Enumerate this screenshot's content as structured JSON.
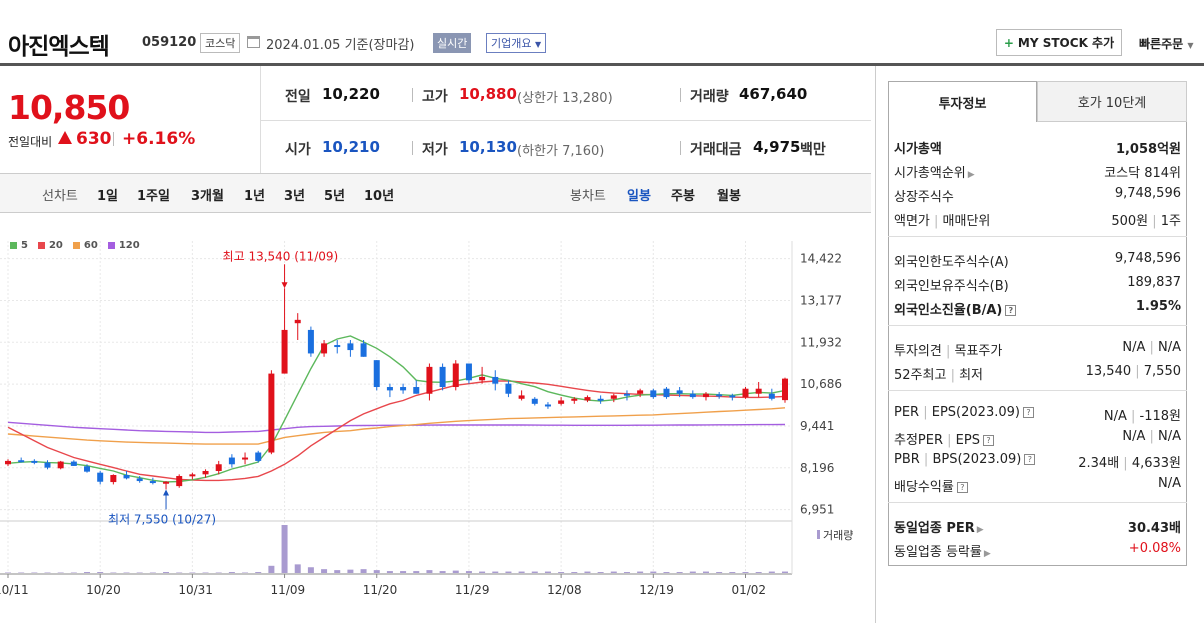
{
  "header": {
    "name": "아진엑스텍",
    "code": "059120",
    "market": "코스닥",
    "date": "2024.01.05  기준(장마감)",
    "realtime": "실시간",
    "overview": "기업개요",
    "mystock": "MY STOCK 추가",
    "mystock_plus": "+",
    "quickorder": "빠른주문"
  },
  "price": {
    "current": "10,850",
    "change_label": "전일대비",
    "change": "630",
    "change_pct": "+6.16%"
  },
  "quotes": {
    "prev_close_label": "전일",
    "prev_close": "10,220",
    "high_label": "고가",
    "high": "10,880",
    "upper_limit": "(상한가 13,280)",
    "volume_label": "거래량",
    "volume": "467,640",
    "open_label": "시가",
    "open": "10,210",
    "low_label": "저가",
    "low": "10,130",
    "lower_limit": "(하한가 7,160)",
    "amount_label": "거래대금",
    "amount": "4,975",
    "amount_unit": "백만"
  },
  "period_bar": {
    "line_label": "선차트",
    "line_items": [
      "1일",
      "1주일",
      "3개월",
      "1년",
      "3년",
      "5년",
      "10년"
    ],
    "candle_label": "봉차트",
    "candle_items": [
      "일봉",
      "주봉",
      "월봉"
    ],
    "active_candle": "일봉"
  },
  "chart_data": {
    "type": "candlestick",
    "legend": [
      {
        "name": "5",
        "color": "#5cb85c"
      },
      {
        "name": "20",
        "color": "#e8474c"
      },
      {
        "name": "60",
        "color": "#f0a04b"
      },
      {
        "name": "120",
        "color": "#a45ee0"
      }
    ],
    "y_ticks": [
      "14,422",
      "13,177",
      "11,932",
      "10,686",
      "9,441",
      "8,196",
      "6,951"
    ],
    "y_tick_values": [
      14422,
      13177,
      11932,
      10686,
      9441,
      8196,
      6951
    ],
    "ylim": [
      6700,
      14650
    ],
    "x_ticks": [
      {
        "label": "10/11",
        "index": 0
      },
      {
        "label": "10/20",
        "index": 7
      },
      {
        "label": "10/31",
        "index": 14
      },
      {
        "label": "11/09",
        "index": 21
      },
      {
        "label": "11/20",
        "index": 28
      },
      {
        "label": "11/29",
        "index": 35
      },
      {
        "label": "12/08",
        "index": 42
      },
      {
        "label": "12/19",
        "index": 49
      },
      {
        "label": "01/02",
        "index": 56
      }
    ],
    "high_annotation": "최고 13,540 (11/09)",
    "low_annotation": "최저 7,550 (10/27)",
    "high_index": 21,
    "high_value": 13540,
    "low_index": 12,
    "low_value": 7550,
    "volume_label": "거래량",
    "candles": [
      [
        8300,
        8450,
        8250,
        8400,
        "up"
      ],
      [
        8420,
        8500,
        8350,
        8380,
        "down"
      ],
      [
        8400,
        8450,
        8300,
        8350,
        "down"
      ],
      [
        8350,
        8420,
        8150,
        8200,
        "down"
      ],
      [
        8180,
        8400,
        8150,
        8380,
        "up"
      ],
      [
        8380,
        8420,
        8250,
        8250,
        "down"
      ],
      [
        8240,
        8300,
        8050,
        8080,
        "down"
      ],
      [
        8050,
        8100,
        7700,
        7780,
        "down"
      ],
      [
        7770,
        8000,
        7700,
        7980,
        "up"
      ],
      [
        7980,
        8100,
        7850,
        7880,
        "down"
      ],
      [
        7880,
        7950,
        7750,
        7800,
        "down"
      ],
      [
        7800,
        7900,
        7700,
        7750,
        "down"
      ],
      [
        7750,
        7800,
        7550,
        7780,
        "up"
      ],
      [
        7650,
        8000,
        7600,
        7950,
        "up"
      ],
      [
        7950,
        8050,
        7850,
        8000,
        "up"
      ],
      [
        8000,
        8150,
        7900,
        8100,
        "up"
      ],
      [
        8100,
        8400,
        8000,
        8300,
        "up"
      ],
      [
        8300,
        8600,
        8200,
        8500,
        "down"
      ],
      [
        8450,
        8650,
        8300,
        8500,
        "up"
      ],
      [
        8400,
        8700,
        8350,
        8650,
        "down"
      ],
      [
        8650,
        11100,
        8600,
        11000,
        "up"
      ],
      [
        11000,
        13540,
        11000,
        12300,
        "up"
      ],
      [
        12600,
        12800,
        12000,
        12500,
        "up"
      ],
      [
        12300,
        12400,
        11500,
        11600,
        "down"
      ],
      [
        11600,
        12000,
        11500,
        11900,
        "up"
      ],
      [
        11850,
        12000,
        11600,
        11800,
        "down"
      ],
      [
        11700,
        12000,
        11500,
        11900,
        "down"
      ],
      [
        11900,
        12000,
        11500,
        11500,
        "down"
      ],
      [
        11400,
        11400,
        10500,
        10600,
        "down"
      ],
      [
        10600,
        10700,
        10300,
        10500,
        "down"
      ],
      [
        10500,
        10700,
        10400,
        10600,
        "down"
      ],
      [
        10600,
        10800,
        10400,
        10400,
        "down"
      ],
      [
        10400,
        11300,
        10200,
        11200,
        "up"
      ],
      [
        11200,
        11300,
        10500,
        10600,
        "down"
      ],
      [
        10600,
        11400,
        10500,
        11300,
        "up"
      ],
      [
        11300,
        11300,
        10700,
        10800,
        "down"
      ],
      [
        10800,
        11200,
        10700,
        10900,
        "up"
      ],
      [
        10900,
        11100,
        10500,
        10700,
        "down"
      ],
      [
        10700,
        10800,
        10300,
        10400,
        "down"
      ],
      [
        10350,
        10500,
        10200,
        10250,
        "up"
      ],
      [
        10250,
        10300,
        10050,
        10100,
        "down"
      ],
      [
        10080,
        10150,
        9950,
        10050,
        "down"
      ],
      [
        10100,
        10300,
        10050,
        10200,
        "up"
      ],
      [
        10200,
        10300,
        10100,
        10250,
        "up"
      ],
      [
        10300,
        10350,
        10150,
        10200,
        "up"
      ],
      [
        10200,
        10350,
        10100,
        10250,
        "down"
      ],
      [
        10250,
        10400,
        10150,
        10350,
        "up"
      ],
      [
        10350,
        10500,
        10200,
        10400,
        "down"
      ],
      [
        10400,
        10550,
        10300,
        10500,
        "up"
      ],
      [
        10500,
        10550,
        10250,
        10300,
        "down"
      ],
      [
        10300,
        10600,
        10250,
        10550,
        "down"
      ],
      [
        10500,
        10600,
        10300,
        10400,
        "down"
      ],
      [
        10400,
        10500,
        10250,
        10300,
        "down"
      ],
      [
        10300,
        10450,
        10200,
        10400,
        "up"
      ],
      [
        10380,
        10450,
        10250,
        10350,
        "down"
      ],
      [
        10350,
        10400,
        10200,
        10300,
        "down"
      ],
      [
        10300,
        10600,
        10250,
        10550,
        "up"
      ],
      [
        10550,
        10750,
        10300,
        10400,
        "up"
      ],
      [
        10400,
        10550,
        10200,
        10250,
        "down"
      ],
      [
        10210,
        10880,
        10130,
        10850,
        "up"
      ]
    ],
    "volume": [
      1,
      1,
      1,
      1,
      1,
      1,
      2,
      2,
      1,
      1,
      1,
      1,
      2,
      1,
      1,
      1,
      1,
      2,
      1,
      2,
      15,
      100,
      18,
      12,
      8,
      6,
      7,
      8,
      6,
      4,
      4,
      4,
      6,
      4,
      5,
      4,
      3,
      3,
      3,
      3,
      3,
      3,
      2,
      2,
      3,
      2,
      3,
      2,
      3,
      3,
      2,
      2,
      3,
      3,
      2,
      2,
      2,
      2,
      3,
      3
    ],
    "ma5": [
      8330,
      8360,
      8380,
      8350,
      8342,
      8312,
      8258,
      8176,
      8098,
      7974,
      7900,
      7824,
      7776,
      7786,
      7838,
      7912,
      8020,
      8160,
      8256,
      8367,
      8861,
      9615,
      10383,
      11149,
      11840,
      12030,
      12120,
      11940,
      11754,
      11500,
      11200,
      10800,
      10750,
      10740,
      10780,
      10860,
      10960,
      10860,
      10800,
      10700,
      10610,
      10460,
      10360,
      10270,
      10210,
      10180,
      10220,
      10300,
      10360,
      10380,
      10400,
      10400,
      10390,
      10390,
      10370,
      10350,
      10400,
      10440,
      10420,
      10500
    ],
    "ma20": [
      9400,
      9200,
      9000,
      8800,
      8650,
      8500,
      8400,
      8300,
      8200,
      8100,
      8000,
      7950,
      7900,
      7850,
      7830,
      7820,
      7820,
      7840,
      7880,
      7940,
      8100,
      8300,
      8550,
      8850,
      9100,
      9350,
      9600,
      9800,
      9950,
      10100,
      10200,
      10350,
      10450,
      10550,
      10650,
      10700,
      10750,
      10780,
      10780,
      10750,
      10720,
      10680,
      10620,
      10560,
      10500,
      10450,
      10420,
      10400,
      10380,
      10370,
      10360,
      10350,
      10340,
      10330,
      10320,
      10300,
      10290,
      10290,
      10300,
      10320
    ],
    "ma60": [
      9200,
      9170,
      9140,
      9110,
      9080,
      9050,
      9020,
      9000,
      8980,
      8960,
      8950,
      8940,
      8930,
      8920,
      8910,
      8900,
      8900,
      8900,
      8900,
      8900,
      9000,
      9100,
      9150,
      9200,
      9250,
      9280,
      9300,
      9350,
      9380,
      9420,
      9450,
      9480,
      9520,
      9550,
      9580,
      9600,
      9620,
      9640,
      9660,
      9670,
      9680,
      9690,
      9700,
      9710,
      9720,
      9730,
      9740,
      9750,
      9760,
      9770,
      9790,
      9810,
      9830,
      9850,
      9870,
      9890,
      9910,
      9930,
      9950,
      9980
    ],
    "ma120": [
      9550,
      9520,
      9490,
      9460,
      9430,
      9400,
      9380,
      9360,
      9340,
      9320,
      9300,
      9290,
      9280,
      9270,
      9260,
      9250,
      9250,
      9260,
      9270,
      9280,
      9320,
      9360,
      9400,
      9420,
      9430,
      9440,
      9450,
      9455,
      9458,
      9460,
      9462,
      9464,
      9466,
      9468,
      9470,
      9470,
      9470,
      9470,
      9470,
      9468,
      9466,
      9464,
      9462,
      9460,
      9460,
      9460,
      9460,
      9460,
      9462,
      9464,
      9466,
      9468,
      9470,
      9472,
      9474,
      9476,
      9478,
      9480,
      9482,
      9484
    ]
  },
  "right_panel": {
    "tab_invest": "투자정보",
    "tab_hoga": "호가 10단계",
    "rows": {
      "mcap_label": "시가총액",
      "mcap": "1,058억원",
      "mcap_rank_label": "시가총액순위",
      "mcap_rank": "코스닥 814위",
      "shares_label": "상장주식수",
      "shares": "9,748,596",
      "par_label": "액면가",
      "par_sep": "매매단위",
      "par": "500원",
      "unit": "1주",
      "foreign_limit_label": "외국인한도주식수(A)",
      "foreign_limit": "9,748,596",
      "foreign_hold_label": "외국인보유주식수(B)",
      "foreign_hold": "189,837",
      "foreign_ratio_label": "외국인소진율(B/A)",
      "foreign_ratio": "1.95%",
      "opinion_label": "투자의견",
      "opinion_sep": "목표주가",
      "opinion": "N/A",
      "target": "N/A",
      "w52_label": "52주최고",
      "w52_sep": "최저",
      "w52_high": "13,540",
      "w52_low": "7,550",
      "per_label": "PER",
      "eps_label": "EPS(2023.09)",
      "per": "N/A",
      "eps": "-118원",
      "eper_label": "추정PER",
      "eeps_label": "EPS",
      "eper": "N/A",
      "eeps": "N/A",
      "pbr_label": "PBR",
      "bps_label": "BPS(2023.09)",
      "pbr": "2.34배",
      "bps": "4,633원",
      "div_label": "배당수익률",
      "div": "N/A",
      "sector_per_label": "동일업종 PER",
      "sector_per": "30.43배",
      "sector_rate_label": "동일업종 등락률",
      "sector_rate": "+0.08%"
    }
  }
}
